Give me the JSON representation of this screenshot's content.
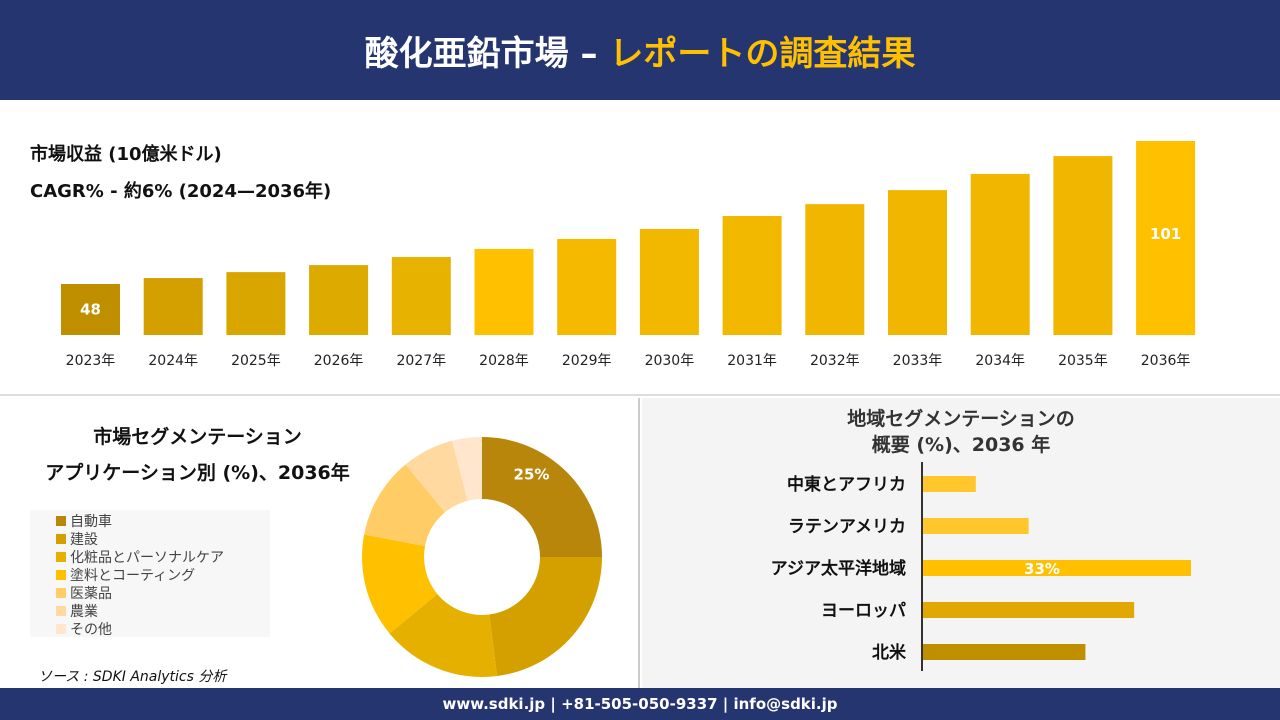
{
  "header": {
    "title_main": "酸化亜鉛市場 –",
    "title_accent": "レポートの調査結果"
  },
  "top": {
    "line1": "市場収益 (10億米ドル)",
    "line2": "CAGR% - 約6% (2024—2036年)"
  },
  "chart_data": [
    {
      "type": "bar",
      "categories": [
        "2023年",
        "2024年",
        "2025年",
        "2026年",
        "2027年",
        "2028年",
        "2029年",
        "2030年",
        "2031年",
        "2032年",
        "2033年",
        "2034年",
        "2035年",
        "2036年"
      ],
      "values": [
        48,
        50.2,
        52.4,
        55,
        58,
        61,
        64.7,
        68.4,
        73.2,
        77.6,
        82.8,
        88.8,
        95.4,
        101
      ],
      "data_labels": {
        "0": "48",
        "13": "101"
      },
      "colors": [
        "#BF8F00",
        "#D4A000",
        "#D9A600",
        "#DDAA00",
        "#E8B300",
        "#FFC000",
        "#F5BA00",
        "#F2B800",
        "#F2B800",
        "#F0B600",
        "#F0B600",
        "#F0B600",
        "#F0B600",
        "#FFC000"
      ]
    },
    {
      "type": "pie",
      "title": "市場セグメンテーション アプリケーション別 (%)、2036年",
      "title_line1": "市場セグメンテーション",
      "title_line2": "アプリケーション別 (%)、2036年",
      "categories": [
        "自動車",
        "建設",
        "化粧品とパーソナルケア",
        "塗料とコーティング",
        "医薬品",
        "農業",
        "その他"
      ],
      "values": [
        25,
        23,
        16,
        14,
        11,
        7,
        4
      ],
      "data_labels": {
        "0": "25%"
      },
      "colors": [
        "#B8860B",
        "#D4A000",
        "#E6B000",
        "#FFC000",
        "#FFCC66",
        "#FFD9A0",
        "#FFE6CC"
      ]
    },
    {
      "type": "bar",
      "orientation": "horizontal",
      "title_line1": "地域セグメンテーションの",
      "title_line2": "概要 (%)、2036 年",
      "categories": [
        "中東とアフリカ",
        "ラテンアメリカ",
        "アジア太平洋地域",
        "ヨーロッパ",
        "北米"
      ],
      "values": [
        6.5,
        13,
        33,
        26,
        20
      ],
      "data_labels": {
        "2": "33%"
      },
      "colors": [
        "#FFC72C",
        "#FFC72C",
        "#FFC000",
        "#E0A800",
        "#BF8F00"
      ]
    }
  ],
  "source": "ソース : SDKI Analytics 分析",
  "footer": "www.sdki.jp | +81-505-050-9337 | info@sdki.jp"
}
